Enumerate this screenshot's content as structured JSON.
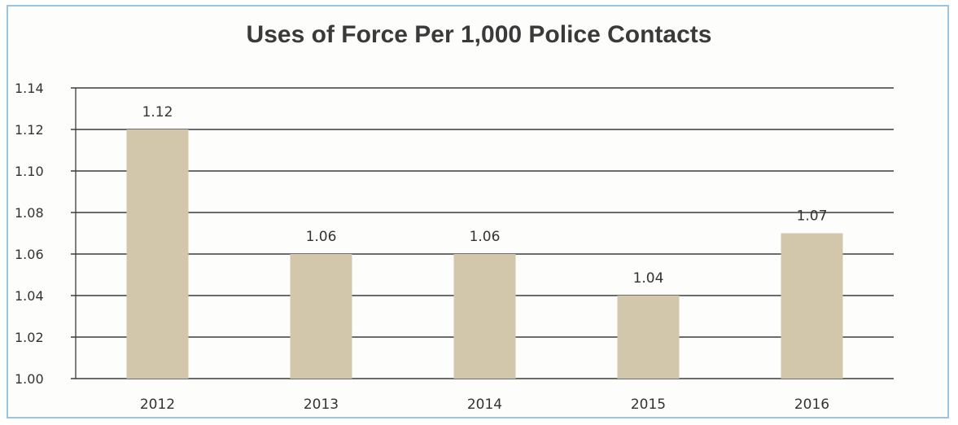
{
  "chart_data": {
    "type": "bar",
    "title": "Uses of Force Per 1,000 Police Contacts",
    "categories": [
      "2012",
      "2013",
      "2014",
      "2015",
      "2016"
    ],
    "values": [
      1.12,
      1.06,
      1.06,
      1.04,
      1.07
    ],
    "data_labels": [
      "1.12",
      "1.06",
      "1.06",
      "1.04",
      "1.07"
    ],
    "ylim": [
      1.0,
      1.14
    ],
    "yticks": [
      "1.00",
      "1.02",
      "1.04",
      "1.06",
      "1.08",
      "1.10",
      "1.12",
      "1.14"
    ],
    "xlabel": "",
    "ylabel": "",
    "grid": true,
    "legend": "none",
    "bar_color": "#d3c7ab",
    "grid_color": "#3c3c3c"
  }
}
